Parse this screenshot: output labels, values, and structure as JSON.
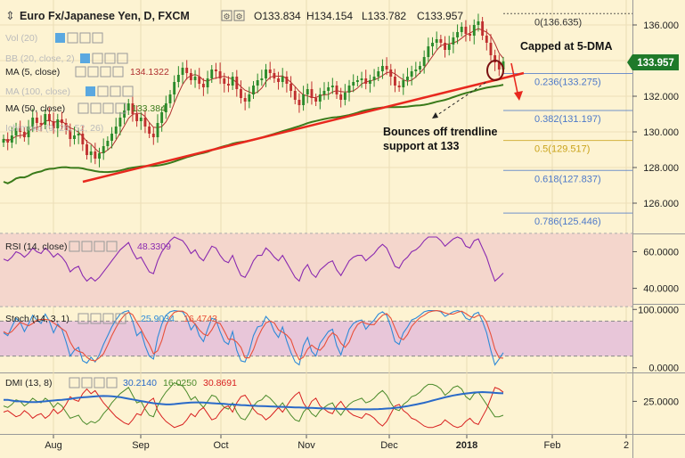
{
  "header": {
    "title": "Euro Fx/Japanese Yen, D, FXCM",
    "ohlc": {
      "open": "O133.834",
      "high": "H134.154",
      "low": "L133.782",
      "close": "C133.957"
    }
  },
  "indicator_labels": {
    "vol": "Vol (20)",
    "bb": "BB (20, close, 2)",
    "ma5": "MA (5, close)",
    "ma5_value": "134.1322",
    "ma100": "MA (100, close)",
    "ma50": "MA (50, close)",
    "ma50_value": "133.384",
    "ichimoku": "Ichimoku (9, 26, 52, 26)"
  },
  "price_badge": "133.957",
  "annotations": {
    "capped": "Capped at 5-DMA",
    "bounce_line1": "Bounces off trendline",
    "bounce_line2": "support at 133"
  },
  "fib_levels": [
    {
      "label": "0(136.635)",
      "value": 136.635,
      "color": "#333333"
    },
    {
      "label": "0.236(133.275)",
      "value": 133.275,
      "color": "#4d79c9"
    },
    {
      "label": "0.382(131.197)",
      "value": 131.197,
      "color": "#4d79c9"
    },
    {
      "label": "0.5(129.517)",
      "value": 129.517,
      "color": "#c9a31a"
    },
    {
      "label": "0.618(127.837)",
      "value": 127.837,
      "color": "#4d79c9"
    },
    {
      "label": "0.786(125.446)",
      "value": 125.446,
      "color": "#4d79c9"
    }
  ],
  "panel_labels": {
    "rsi": "RSI (14, close)",
    "rsi_value": "48.3309",
    "stoch": "Stoch (14, 3, 1)",
    "stoch_k": "25.9034",
    "stoch_d": "16.4743",
    "dmi": "DMI (13, 8)",
    "dmi_adx": "30.2140",
    "dmi_plus": "16.0250",
    "dmi_minus": "30.8691"
  },
  "x_labels": [
    "Aug",
    "Sep",
    "Oct",
    "Nov",
    "Dec",
    "2018",
    "Feb",
    "2"
  ],
  "colors": {
    "background": "#fdf3d2",
    "up_candle": "#2a8a2a",
    "down_candle": "#c03030",
    "ma5": "#b03030",
    "ma50": "#3a7a1a",
    "trendline": "#e8281e",
    "rsi_band": "#f4d6cc",
    "rsi_line": "#8a2ab0",
    "stoch_band": "#e8c6d9",
    "stoch_k": "#2e8ad8",
    "stoch_d": "#e8503a",
    "dmi_adx": "#2a6ac8",
    "dmi_plus": "#4a8a2a",
    "dmi_minus": "#d82020",
    "badge_bg": "#1f7a2a"
  },
  "chart_data": [
    {
      "type": "candlestick",
      "title": "Euro Fx/Japanese Yen, D, FXCM",
      "x_labels": [
        "Aug",
        "Sep",
        "Oct",
        "Nov",
        "Dec",
        "2018",
        "Feb",
        "2"
      ],
      "ylim": [
        124.5,
        137.0
      ],
      "y_ticks": [
        {
          "label": "136.000",
          "value": 136
        },
        {
          "label": "134.000",
          "value": 134
        },
        {
          "label": "132.000",
          "value": 132
        },
        {
          "label": "130.000",
          "value": 130
        },
        {
          "label": "128.000",
          "value": 128
        },
        {
          "label": "126.000",
          "value": 126
        }
      ],
      "closes": [
        129.6,
        129.4,
        129.8,
        130.2,
        130.0,
        129.7,
        130.3,
        130.8,
        130.5,
        130.4,
        131.0,
        130.6,
        130.2,
        130.7,
        130.5,
        130.1,
        129.6,
        129.8,
        129.9,
        129.3,
        128.7,
        128.9,
        128.5,
        128.8,
        129.2,
        129.5,
        129.9,
        130.3,
        130.8,
        131.2,
        131.6,
        131.0,
        130.6,
        130.8,
        130.3,
        129.9,
        129.7,
        130.5,
        131.1,
        131.6,
        132.1,
        132.8,
        133.2,
        133.6,
        133.3,
        132.9,
        133.1,
        132.7,
        132.5,
        133.0,
        133.5,
        133.4,
        133.0,
        132.7,
        132.6,
        133.1,
        132.4,
        131.9,
        131.7,
        132.1,
        132.6,
        132.9,
        133.0,
        133.5,
        133.3,
        133.0,
        132.8,
        133.1,
        132.7,
        132.3,
        131.8,
        131.5,
        132.1,
        132.4,
        131.9,
        131.7,
        132.1,
        132.3,
        132.5,
        132.6,
        132.1,
        131.8,
        132.2,
        132.6,
        132.8,
        132.9,
        133.0,
        132.7,
        132.9,
        133.1,
        133.4,
        133.7,
        133.5,
        133.1,
        132.6,
        132.5,
        132.9,
        133.1,
        133.4,
        133.5,
        133.7,
        134.2,
        134.8,
        135.0,
        135.2,
        135.0,
        134.6,
        134.9,
        135.3,
        135.6,
        135.9,
        135.5,
        135.4,
        136.0,
        136.2,
        135.4,
        135.0,
        134.3,
        133.9,
        133.5,
        133.957
      ],
      "series": [
        {
          "name": "MA (5, close)",
          "values": []
        },
        {
          "name": "MA (50, close)",
          "values": []
        }
      ]
    },
    {
      "type": "line",
      "title": "RSI (14, close)",
      "ylim": [
        33,
        68
      ],
      "y_ticks": [
        {
          "label": "60.0000",
          "value": 60
        },
        {
          "label": "40.0000",
          "value": 40
        }
      ],
      "series": [
        {
          "name": "RSI",
          "values": [
            56,
            55,
            57,
            60,
            59,
            57,
            59,
            62,
            60,
            59,
            62,
            60,
            57,
            59,
            57,
            54,
            49,
            51,
            52,
            47,
            44,
            46,
            44,
            46,
            49,
            52,
            55,
            58,
            61,
            63,
            65,
            60,
            56,
            57,
            53,
            49,
            48,
            55,
            60,
            63,
            66,
            68,
            67,
            66,
            63,
            59,
            61,
            57,
            55,
            59,
            63,
            62,
            58,
            55,
            54,
            58,
            52,
            47,
            46,
            50,
            55,
            58,
            58,
            62,
            60,
            57,
            55,
            58,
            54,
            50,
            46,
            44,
            50,
            53,
            48,
            46,
            50,
            52,
            54,
            55,
            50,
            47,
            51,
            55,
            57,
            58,
            58,
            55,
            57,
            59,
            62,
            64,
            62,
            57,
            52,
            51,
            55,
            57,
            60,
            61,
            63,
            66,
            68,
            68,
            68,
            66,
            63,
            65,
            67,
            68,
            67,
            63,
            62,
            66,
            67,
            62,
            57,
            50,
            44,
            46,
            48.3
          ]
        }
      ]
    },
    {
      "type": "line",
      "title": "Stoch (14, 3, 1)",
      "ylim": [
        -5,
        105
      ],
      "y_ticks": [
        {
          "label": "100.0000",
          "value": 100
        },
        {
          "label": "0.0000",
          "value": 0
        }
      ],
      "series": [
        {
          "name": "%K",
          "values": [
            60,
            55,
            70,
            85,
            78,
            62,
            75,
            90,
            82,
            76,
            92,
            80,
            60,
            75,
            66,
            45,
            20,
            30,
            35,
            12,
            8,
            18,
            10,
            22,
            40,
            55,
            70,
            82,
            92,
            96,
            98,
            80,
            55,
            62,
            38,
            20,
            15,
            52,
            75,
            90,
            96,
            98,
            97,
            96,
            85,
            65,
            75,
            55,
            45,
            66,
            85,
            82,
            62,
            45,
            40,
            62,
            30,
            12,
            10,
            28,
            55,
            70,
            72,
            88,
            80,
            62,
            52,
            70,
            46,
            26,
            10,
            5,
            38,
            52,
            28,
            20,
            42,
            52,
            62,
            66,
            38,
            22,
            45,
            66,
            76,
            80,
            82,
            66,
            75,
            82,
            92,
            96,
            90,
            70,
            45,
            40,
            60,
            70,
            82,
            85,
            90,
            96,
            98,
            98,
            98,
            96,
            88,
            92,
            96,
            98,
            96,
            85,
            82,
            92,
            95,
            80,
            60,
            30,
            5,
            15,
            25.9
          ]
        },
        {
          "name": "%D",
          "values": [
            62,
            58,
            62,
            70,
            78,
            75,
            72,
            76,
            82,
            83,
            83,
            82,
            77,
            72,
            67,
            62,
            44,
            32,
            28,
            26,
            18,
            13,
            12,
            17,
            24,
            39,
            55,
            69,
            81,
            90,
            95,
            91,
            78,
            66,
            52,
            40,
            24,
            29,
            47,
            72,
            87,
            95,
            97,
            97,
            93,
            82,
            75,
            65,
            58,
            55,
            65,
            78,
            76,
            63,
            49,
            49,
            44,
            35,
            17,
            17,
            31,
            51,
            66,
            77,
            80,
            77,
            65,
            61,
            56,
            48,
            28,
            14,
            18,
            32,
            39,
            33,
            30,
            38,
            52,
            60,
            55,
            42,
            35,
            44,
            62,
            74,
            79,
            76,
            74,
            74,
            83,
            90,
            93,
            85,
            68,
            52,
            48,
            57,
            71,
            79,
            86,
            90,
            95,
            97,
            98,
            97,
            94,
            92,
            92,
            95,
            97,
            93,
            88,
            86,
            90,
            89,
            78,
            57,
            32,
            17,
            16.5
          ]
        }
      ]
    },
    {
      "type": "line",
      "title": "DMI (13, 8)",
      "ylim": [
        5,
        42
      ],
      "y_ticks": [
        {
          "label": "25.0000",
          "value": 25
        }
      ],
      "series": [
        {
          "name": "ADX",
          "values": [
            26,
            26,
            25.5,
            25,
            25,
            24.8,
            24.5,
            24.5,
            24.5,
            24.8,
            25,
            25.3,
            25.5,
            25.8,
            26,
            26.2,
            26.5,
            27,
            27.3,
            27.6,
            27.8,
            28,
            28.2,
            28.4,
            28.5,
            28.4,
            28.3,
            28,
            27.7,
            27.2,
            26.7,
            26.2,
            25.7,
            25.2,
            24.7,
            24.2,
            23.8,
            23.5,
            23.2,
            23,
            23,
            23.2,
            23.5,
            23.8,
            24,
            24.2,
            24.3,
            24.3,
            24.2,
            24,
            23.8,
            23.6,
            23.5,
            23.3,
            23.1,
            23,
            22.8,
            22.6,
            22.5,
            22.3,
            22.2,
            22,
            21.9,
            21.8,
            21.7,
            21.6,
            21.5,
            21.4,
            21.3,
            21.2,
            21.1,
            21,
            20.9,
            20.8,
            20.7,
            20.6,
            20.5,
            20.4,
            20.3,
            20.2,
            20.2,
            20.1,
            20,
            20,
            19.9,
            19.9,
            19.8,
            19.8,
            19.8,
            19.9,
            20,
            20.1,
            20.3,
            20.5,
            20.8,
            21.1,
            21.5,
            21.9,
            22.4,
            22.9,
            23.5,
            24.1,
            24.8,
            25.5,
            26.2,
            26.9,
            27.6,
            28.2,
            28.8,
            29.3,
            29.7,
            30.1,
            30.4,
            30.7,
            30.9,
            31,
            30.9,
            30.7,
            30.5,
            30.3,
            30.2
          ]
        },
        {
          "name": "+DI",
          "values": [
            22,
            21,
            23,
            26,
            25,
            22,
            24,
            27,
            25,
            24,
            27,
            25,
            21,
            24,
            22,
            18,
            14,
            15,
            16,
            12,
            10,
            12,
            11,
            13,
            17,
            20,
            24,
            27,
            30,
            32,
            34,
            29,
            24,
            25,
            20,
            16,
            15,
            22,
            27,
            31,
            34,
            37,
            36,
            35,
            31,
            26,
            28,
            24,
            21,
            25,
            29,
            28,
            24,
            21,
            20,
            24,
            18,
            14,
            13,
            17,
            22,
            25,
            26,
            29,
            27,
            24,
            21,
            24,
            20,
            16,
            13,
            12,
            18,
            21,
            17,
            15,
            19,
            21,
            23,
            24,
            19,
            16,
            20,
            23,
            25,
            26,
            27,
            24,
            25,
            27,
            30,
            32,
            29,
            24,
            20,
            19,
            23,
            25,
            28,
            29,
            31,
            34,
            36,
            36,
            35,
            33,
            29,
            31,
            34,
            35,
            33,
            28,
            26,
            30,
            31,
            27,
            23,
            19,
            15,
            15,
            16
          ]
        },
        {
          "name": "-DI",
          "values": [
            18,
            19,
            17,
            15,
            16,
            19,
            17,
            14,
            16,
            17,
            14,
            16,
            20,
            17,
            19,
            23,
            28,
            26,
            25,
            30,
            33,
            30,
            32,
            28,
            24,
            21,
            18,
            15,
            13,
            11,
            10,
            13,
            17,
            16,
            21,
            25,
            27,
            19,
            15,
            12,
            10,
            8,
            9,
            10,
            13,
            17,
            15,
            19,
            21,
            17,
            13,
            14,
            18,
            21,
            22,
            18,
            24,
            28,
            29,
            25,
            20,
            17,
            16,
            13,
            15,
            18,
            21,
            18,
            22,
            26,
            29,
            31,
            24,
            20,
            25,
            27,
            22,
            20,
            18,
            17,
            22,
            25,
            21,
            18,
            16,
            15,
            14,
            17,
            16,
            14,
            11,
            9,
            12,
            17,
            22,
            23,
            19,
            17,
            14,
            13,
            11,
            9,
            8,
            8,
            9,
            10,
            13,
            11,
            9,
            8,
            9,
            12,
            14,
            11,
            10,
            15,
            20,
            27,
            34,
            33,
            30.9
          ]
        }
      ]
    }
  ]
}
